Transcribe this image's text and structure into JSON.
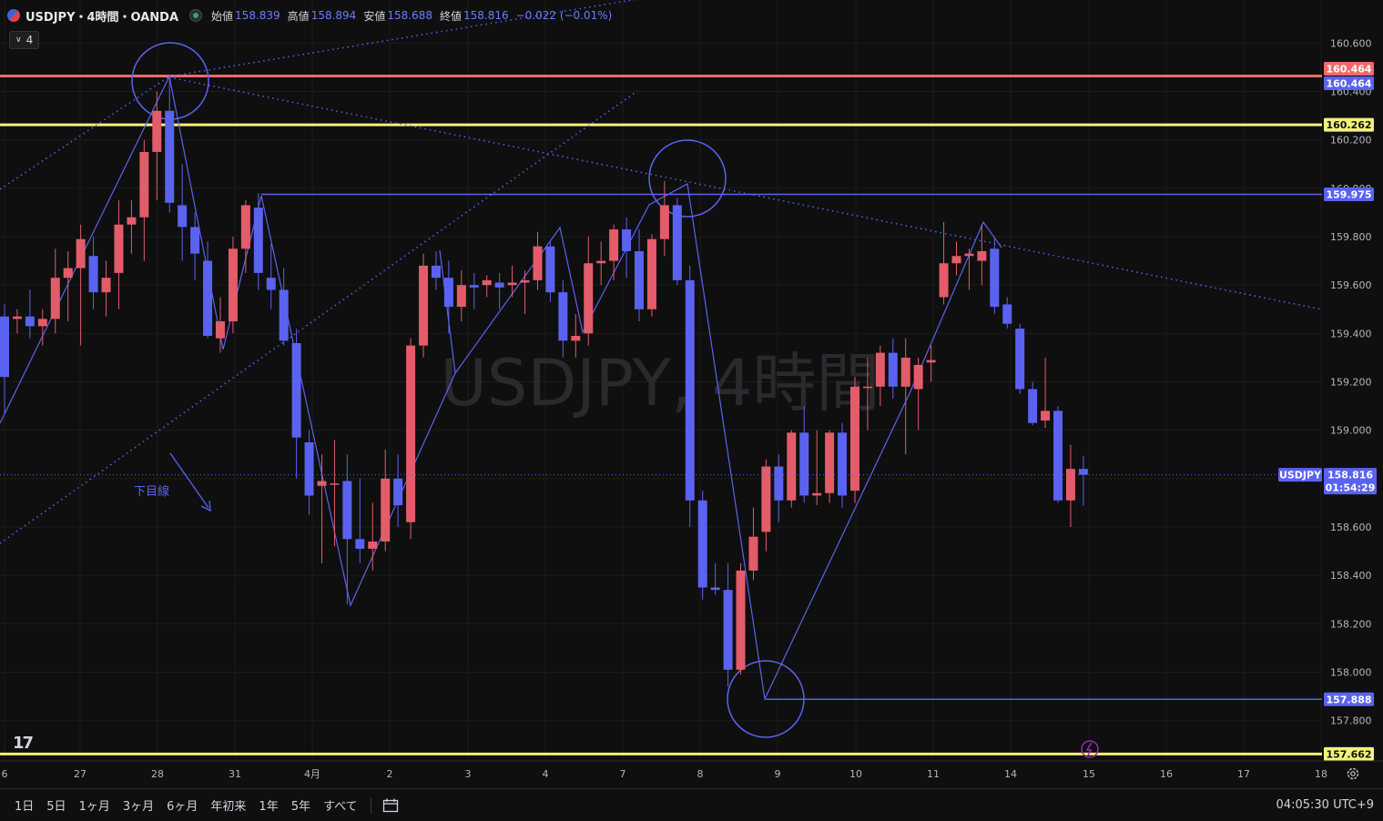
{
  "header": {
    "title": "USDJPY・4時間・OANDA",
    "open_label": "始値",
    "open": "158.839",
    "high_label": "高値",
    "high": "158.894",
    "low_label": "安値",
    "low": "158.688",
    "close_label": "終値",
    "close": "158.816",
    "change": "−0.022 (−0.01%)"
  },
  "interval_badge": "4",
  "watermark": "USDJPY, 4時間",
  "annotation_text": "下目線",
  "bottom_bar": {
    "ranges": [
      "1日",
      "5日",
      "1ヶ月",
      "3ヶ月",
      "6ヶ月",
      "年初来",
      "1年",
      "5年",
      "すべて"
    ],
    "clock": "04:05:30 UTC+9"
  },
  "colors": {
    "up": "#e35c6a",
    "down": "#5a63f0",
    "hline_red": "#f06a6a",
    "hline_yellow": "#f2f27a",
    "drawing": "#5a63f0",
    "background": "#0f0f0f"
  },
  "chart_data": {
    "type": "candlestick",
    "symbol": "USDJPY",
    "timeframe": "4時間",
    "x_ticks": [
      "6",
      "27",
      "28",
      "31",
      "4月",
      "2",
      "3",
      "4",
      "7",
      "8",
      "9",
      "10",
      "11",
      "14",
      "15",
      "16",
      "17",
      "18"
    ],
    "y_ticks": [
      "157.800",
      "158.000",
      "158.200",
      "158.400",
      "158.600",
      "158.800",
      "159.000",
      "159.200",
      "159.400",
      "159.600",
      "159.800",
      "160.000",
      "160.200",
      "160.400",
      "160.600"
    ],
    "ylim": [
      157.55,
      160.68
    ],
    "price_labels": {
      "last_symbol": "USDJPY",
      "last_price": "158.816",
      "countdown": "01:54:29"
    },
    "horizontal_lines": [
      {
        "price": 160.464,
        "label": "160.464",
        "color": "#f06a6a",
        "style": "solid"
      },
      {
        "price": 160.262,
        "label": "160.262",
        "color": "#f2f27a",
        "style": "solid"
      },
      {
        "price": 159.975,
        "label": "159.975",
        "color": "#5a63f0",
        "style": "solid"
      },
      {
        "price": 157.888,
        "label": "157.888",
        "color": "#5a63f0",
        "style": "solid"
      },
      {
        "price": 157.662,
        "label": "157.662",
        "color": "#f2f27a",
        "style": "solid"
      }
    ],
    "extra_axis_label": {
      "price": 160.464,
      "label": "160.464",
      "color": "#5a63f0"
    },
    "candles": [
      {
        "o": 159.47,
        "h": 159.52,
        "l": 159.07,
        "c": 159.22
      },
      {
        "o": 159.46,
        "h": 159.5,
        "l": 159.4,
        "c": 159.47
      },
      {
        "o": 159.47,
        "h": 159.58,
        "l": 159.38,
        "c": 159.43
      },
      {
        "o": 159.43,
        "h": 159.5,
        "l": 159.35,
        "c": 159.46
      },
      {
        "o": 159.46,
        "h": 159.75,
        "l": 159.4,
        "c": 159.63
      },
      {
        "o": 159.63,
        "h": 159.74,
        "l": 159.45,
        "c": 159.67
      },
      {
        "o": 159.67,
        "h": 159.85,
        "l": 159.35,
        "c": 159.79
      },
      {
        "o": 159.72,
        "h": 159.8,
        "l": 159.5,
        "c": 159.57
      },
      {
        "o": 159.57,
        "h": 159.7,
        "l": 159.47,
        "c": 159.63
      },
      {
        "o": 159.65,
        "h": 159.95,
        "l": 159.5,
        "c": 159.85
      },
      {
        "o": 159.85,
        "h": 159.95,
        "l": 159.73,
        "c": 159.88
      },
      {
        "o": 159.88,
        "h": 160.2,
        "l": 159.7,
        "c": 160.15
      },
      {
        "o": 160.15,
        "h": 160.4,
        "l": 159.95,
        "c": 160.32
      },
      {
        "o": 160.32,
        "h": 160.464,
        "l": 159.9,
        "c": 159.94
      },
      {
        "o": 159.93,
        "h": 160.1,
        "l": 159.7,
        "c": 159.84
      },
      {
        "o": 159.84,
        "h": 159.9,
        "l": 159.62,
        "c": 159.73
      },
      {
        "o": 159.7,
        "h": 159.78,
        "l": 159.38,
        "c": 159.39
      },
      {
        "o": 159.38,
        "h": 159.55,
        "l": 159.32,
        "c": 159.45
      },
      {
        "o": 159.45,
        "h": 159.8,
        "l": 159.4,
        "c": 159.75
      },
      {
        "o": 159.75,
        "h": 159.95,
        "l": 159.65,
        "c": 159.93
      },
      {
        "o": 159.92,
        "h": 159.98,
        "l": 159.58,
        "c": 159.65
      },
      {
        "o": 159.63,
        "h": 159.77,
        "l": 159.5,
        "c": 159.58
      },
      {
        "o": 159.58,
        "h": 159.67,
        "l": 159.35,
        "c": 159.37
      },
      {
        "o": 159.36,
        "h": 159.42,
        "l": 158.8,
        "c": 158.97
      },
      {
        "o": 158.95,
        "h": 159.0,
        "l": 158.65,
        "c": 158.73
      },
      {
        "o": 158.77,
        "h": 158.9,
        "l": 158.45,
        "c": 158.79
      },
      {
        "o": 158.78,
        "h": 158.96,
        "l": 158.52,
        "c": 158.78
      },
      {
        "o": 158.79,
        "h": 158.9,
        "l": 158.28,
        "c": 158.55
      },
      {
        "o": 158.55,
        "h": 158.8,
        "l": 158.45,
        "c": 158.51
      },
      {
        "o": 158.51,
        "h": 158.7,
        "l": 158.42,
        "c": 158.54
      },
      {
        "o": 158.54,
        "h": 158.92,
        "l": 158.5,
        "c": 158.8
      },
      {
        "o": 158.8,
        "h": 158.9,
        "l": 158.6,
        "c": 158.69
      },
      {
        "o": 158.62,
        "h": 159.38,
        "l": 158.55,
        "c": 159.35
      },
      {
        "o": 159.35,
        "h": 159.73,
        "l": 159.3,
        "c": 159.68
      },
      {
        "o": 159.68,
        "h": 159.74,
        "l": 159.58,
        "c": 159.63
      },
      {
        "o": 159.63,
        "h": 159.7,
        "l": 159.4,
        "c": 159.51
      },
      {
        "o": 159.51,
        "h": 159.66,
        "l": 159.45,
        "c": 159.6
      },
      {
        "o": 159.6,
        "h": 159.65,
        "l": 159.5,
        "c": 159.59
      },
      {
        "o": 159.6,
        "h": 159.64,
        "l": 159.55,
        "c": 159.62
      },
      {
        "o": 159.61,
        "h": 159.65,
        "l": 159.5,
        "c": 159.59
      },
      {
        "o": 159.6,
        "h": 159.68,
        "l": 159.55,
        "c": 159.61
      },
      {
        "o": 159.61,
        "h": 159.66,
        "l": 159.48,
        "c": 159.62
      },
      {
        "o": 159.62,
        "h": 159.82,
        "l": 159.58,
        "c": 159.76
      },
      {
        "o": 159.76,
        "h": 159.78,
        "l": 159.53,
        "c": 159.57
      },
      {
        "o": 159.57,
        "h": 159.62,
        "l": 159.3,
        "c": 159.37
      },
      {
        "o": 159.37,
        "h": 159.48,
        "l": 159.3,
        "c": 159.39
      },
      {
        "o": 159.4,
        "h": 159.8,
        "l": 159.35,
        "c": 159.69
      },
      {
        "o": 159.69,
        "h": 159.78,
        "l": 159.6,
        "c": 159.7
      },
      {
        "o": 159.7,
        "h": 159.85,
        "l": 159.62,
        "c": 159.83
      },
      {
        "o": 159.83,
        "h": 159.88,
        "l": 159.63,
        "c": 159.74
      },
      {
        "o": 159.74,
        "h": 159.83,
        "l": 159.45,
        "c": 159.5
      },
      {
        "o": 159.5,
        "h": 159.81,
        "l": 159.47,
        "c": 159.79
      },
      {
        "o": 159.79,
        "h": 160.03,
        "l": 159.72,
        "c": 159.93
      },
      {
        "o": 159.93,
        "h": 159.96,
        "l": 159.6,
        "c": 159.62
      },
      {
        "o": 159.62,
        "h": 159.68,
        "l": 158.6,
        "c": 158.71
      },
      {
        "o": 158.71,
        "h": 158.75,
        "l": 158.3,
        "c": 158.35
      },
      {
        "o": 158.35,
        "h": 158.45,
        "l": 158.32,
        "c": 158.34
      },
      {
        "o": 158.34,
        "h": 158.45,
        "l": 157.94,
        "c": 158.01
      },
      {
        "o": 158.01,
        "h": 158.45,
        "l": 157.99,
        "c": 158.42
      },
      {
        "o": 158.42,
        "h": 158.68,
        "l": 158.38,
        "c": 158.56
      },
      {
        "o": 158.58,
        "h": 158.88,
        "l": 158.5,
        "c": 158.85
      },
      {
        "o": 158.85,
        "h": 158.9,
        "l": 158.62,
        "c": 158.71
      },
      {
        "o": 158.71,
        "h": 159.0,
        "l": 158.68,
        "c": 158.99
      },
      {
        "o": 158.99,
        "h": 159.1,
        "l": 158.7,
        "c": 158.73
      },
      {
        "o": 158.73,
        "h": 159.0,
        "l": 158.69,
        "c": 158.74
      },
      {
        "o": 158.74,
        "h": 159.0,
        "l": 158.7,
        "c": 158.99
      },
      {
        "o": 158.99,
        "h": 159.03,
        "l": 158.68,
        "c": 158.73
      },
      {
        "o": 158.75,
        "h": 159.22,
        "l": 158.7,
        "c": 159.18
      },
      {
        "o": 159.18,
        "h": 159.3,
        "l": 159.0,
        "c": 159.18
      },
      {
        "o": 159.18,
        "h": 159.35,
        "l": 159.1,
        "c": 159.32
      },
      {
        "o": 159.32,
        "h": 159.38,
        "l": 159.13,
        "c": 159.18
      },
      {
        "o": 159.18,
        "h": 159.38,
        "l": 158.9,
        "c": 159.3
      },
      {
        "o": 159.17,
        "h": 159.3,
        "l": 159.0,
        "c": 159.27
      },
      {
        "o": 159.28,
        "h": 159.35,
        "l": 159.2,
        "c": 159.29
      },
      {
        "o": 159.55,
        "h": 159.86,
        "l": 159.52,
        "c": 159.69
      },
      {
        "o": 159.69,
        "h": 159.78,
        "l": 159.64,
        "c": 159.72
      },
      {
        "o": 159.72,
        "h": 159.75,
        "l": 159.58,
        "c": 159.73
      },
      {
        "o": 159.7,
        "h": 159.85,
        "l": 159.6,
        "c": 159.74
      },
      {
        "o": 159.75,
        "h": 159.8,
        "l": 159.48,
        "c": 159.51
      },
      {
        "o": 159.52,
        "h": 159.55,
        "l": 159.42,
        "c": 159.44
      },
      {
        "o": 159.42,
        "h": 159.44,
        "l": 159.15,
        "c": 159.17
      },
      {
        "o": 159.17,
        "h": 159.2,
        "l": 159.02,
        "c": 159.03
      },
      {
        "o": 159.04,
        "h": 159.3,
        "l": 159.01,
        "c": 159.08
      },
      {
        "o": 159.08,
        "h": 159.1,
        "l": 158.7,
        "c": 158.71
      },
      {
        "o": 158.71,
        "h": 158.94,
        "l": 158.6,
        "c": 158.84
      },
      {
        "o": 158.84,
        "h": 158.894,
        "l": 158.688,
        "c": 158.816
      }
    ]
  }
}
